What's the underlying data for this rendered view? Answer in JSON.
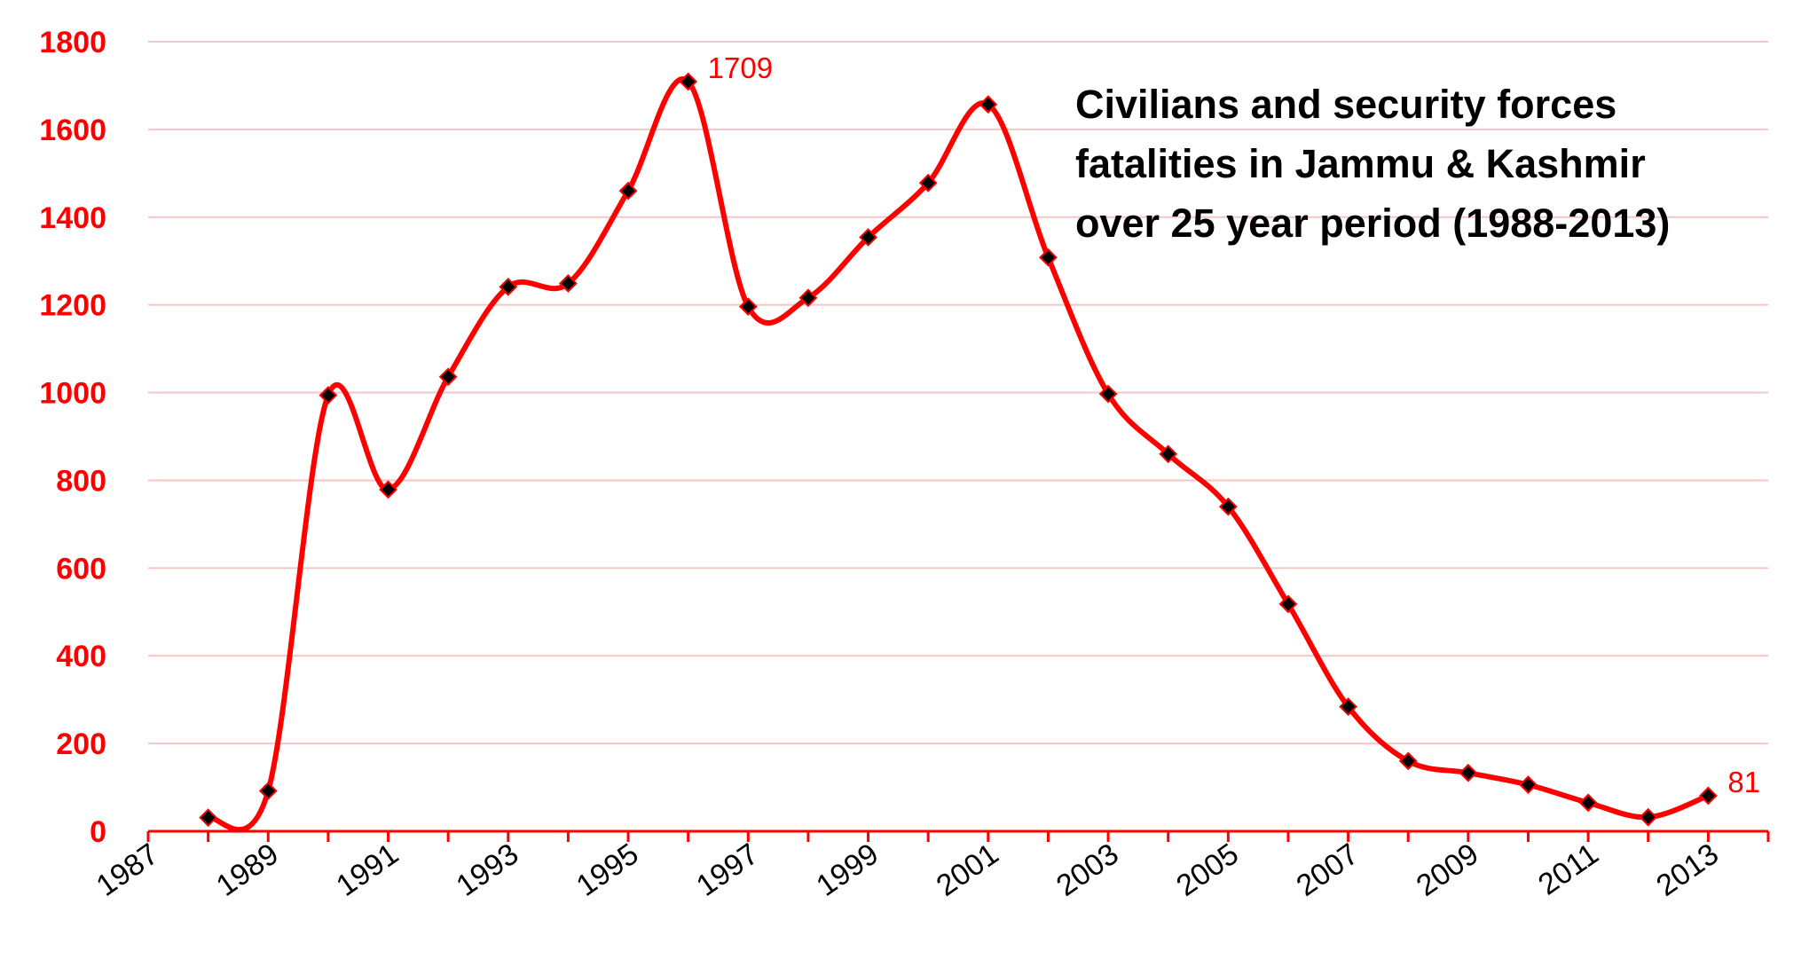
{
  "chart_data": {
    "type": "line",
    "title_lines": [
      "Civilians and security forces",
      "fatalities in Jammu & Kashmir",
      "over 25 year period (1988-2013)"
    ],
    "xlabel": "",
    "ylabel": "",
    "x": [
      1988,
      1989,
      1990,
      1991,
      1992,
      1993,
      1994,
      1995,
      1996,
      1997,
      1998,
      1999,
      2000,
      2001,
      2002,
      2003,
      2004,
      2005,
      2006,
      2007,
      2008,
      2009,
      2010,
      2011,
      2012,
      2013
    ],
    "y": [
      31,
      92,
      994,
      779,
      1036,
      1241,
      1249,
      1460,
      1709,
      1196,
      1216,
      1354,
      1478,
      1657,
      1308,
      997,
      860,
      740,
      518,
      284,
      160,
      133,
      106,
      65,
      32,
      81
    ],
    "xlim": [
      1987,
      2014
    ],
    "ylim": [
      0,
      1800
    ],
    "x_ticks": [
      "1987",
      "1989",
      "1991",
      "1993",
      "1995",
      "1997",
      "1999",
      "2001",
      "2003",
      "2005",
      "2007",
      "2009",
      "2011",
      "2013"
    ],
    "y_ticks": [
      "0",
      "200",
      "400",
      "600",
      "800",
      "1000",
      "1200",
      "1400",
      "1600",
      "1800"
    ],
    "annotations": [
      {
        "x": 1996,
        "y": 1709,
        "text": "1709"
      },
      {
        "x": 2013,
        "y": 81,
        "text": "81"
      }
    ],
    "line_color": "#ff0000",
    "marker_color": "#000000",
    "grid": "horizontal",
    "grid_color": "#f4c6c6",
    "legend": "none"
  }
}
